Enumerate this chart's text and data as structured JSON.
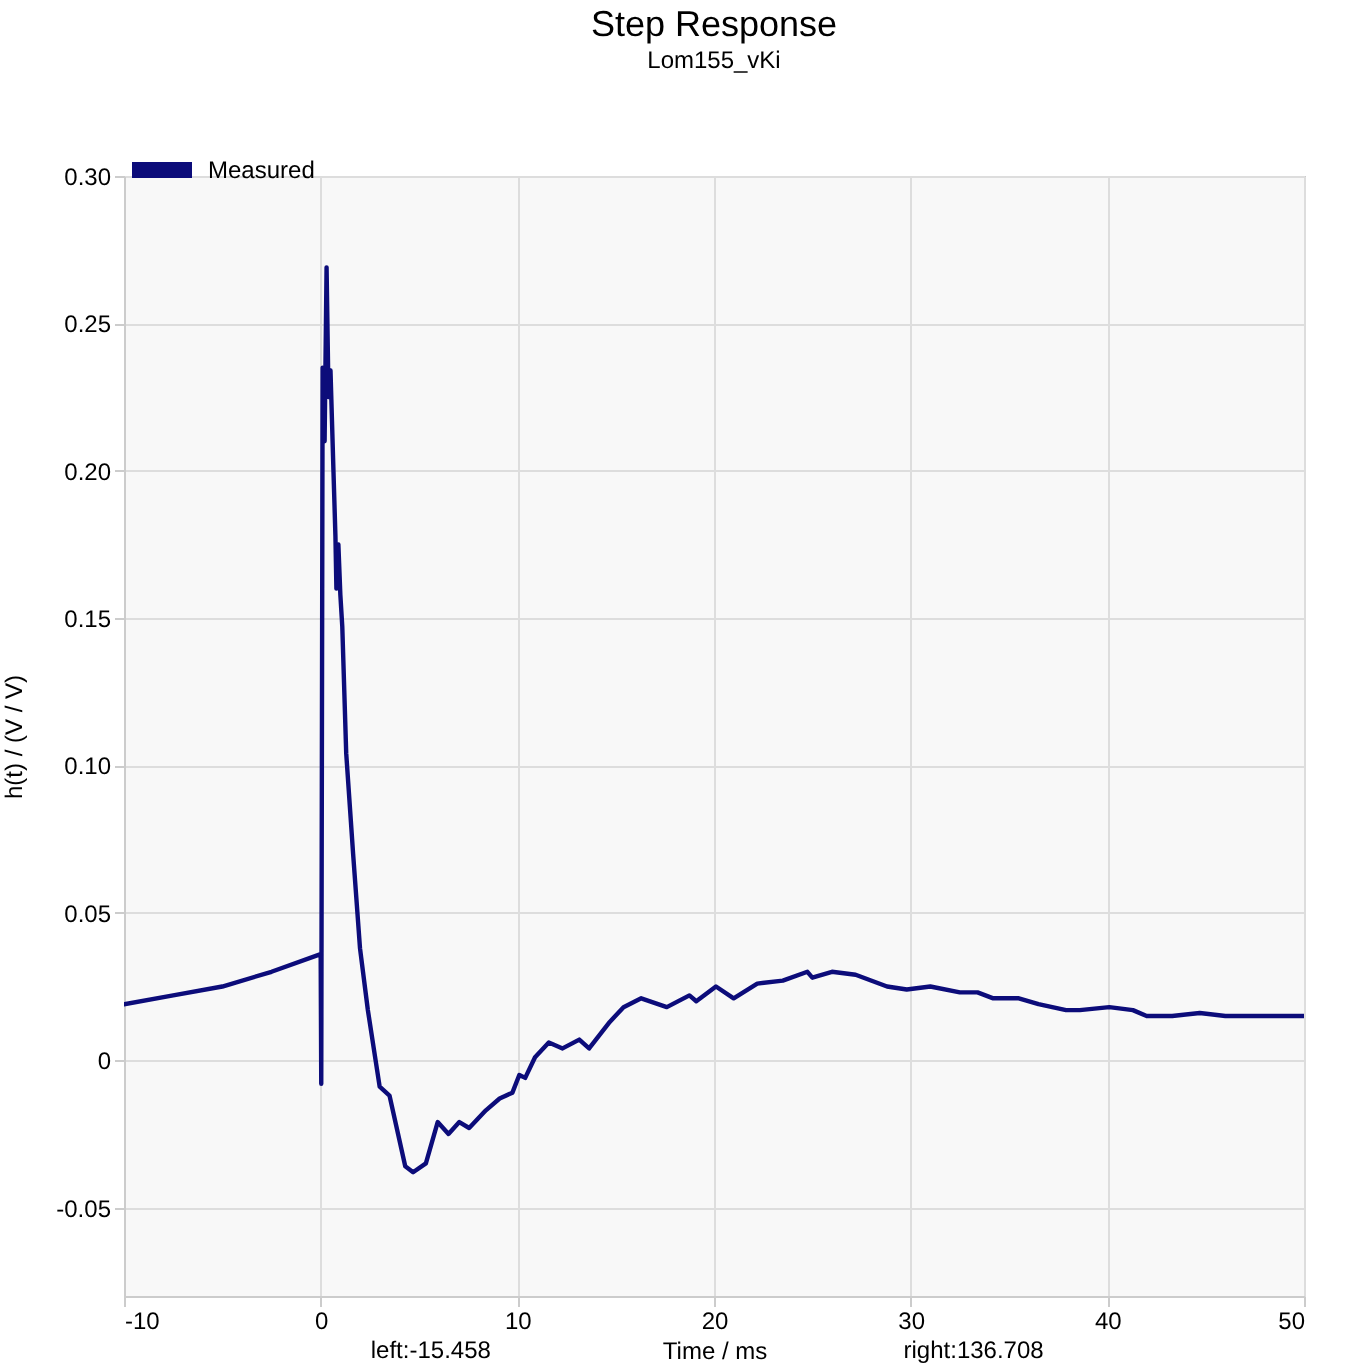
{
  "chart_data": {
    "type": "line",
    "title": "Step Response",
    "subtitle": "Lom155_vKi",
    "xlabel": "Time / ms",
    "ylabel": "h(t) / (V / V)",
    "annotations": [
      "left:-15.458",
      "right:136.708"
    ],
    "xlim": [
      -10,
      50
    ],
    "xticks": [
      -10,
      0,
      10,
      20,
      30,
      40,
      50
    ],
    "ylim": [
      -0.08,
      0.3
    ],
    "yticks": [
      -0.05,
      0,
      0.05,
      {
        "value": 0.1,
        "label": "0.10"
      },
      0.15,
      {
        "value": 0.2,
        "label": "0.20"
      },
      0.25,
      {
        "value": 0.3,
        "label": "0.30"
      }
    ],
    "grid": true,
    "legend": "top left",
    "line_style": "solid",
    "series": [
      {
        "name": "Measured",
        "color": "#0c0c7a",
        "x": [
          -10,
          -7.5,
          -5,
          -2.5,
          0,
          0.03,
          0.1,
          0.2,
          0.3,
          0.4,
          0.5,
          0.65,
          0.75,
          0.8,
          0.9,
          1.0,
          1.1,
          1.3,
          1.65,
          2.0,
          2.4,
          3.0,
          3.5,
          4.3,
          4.7,
          5.35,
          5.95,
          6.5,
          7.05,
          7.55,
          8.4,
          9.1,
          9.75,
          10.1,
          10.4,
          10.9,
          11.6,
          12.3,
          13.15,
          13.65,
          14.7,
          15.4,
          16.3,
          17.6,
          18.75,
          19.1,
          20.1,
          21.0,
          22.2,
          23.5,
          24.75,
          25.0,
          26.0,
          27.2,
          28.8,
          29.8,
          31.0,
          32.5,
          33.4,
          34.2,
          35.5,
          36.5,
          37.9,
          38.6,
          40.1,
          41.3,
          42.0,
          43.3,
          44.7,
          46.0,
          50
        ],
        "values": [
          0.019,
          0.022,
          0.025,
          0.03,
          0.036,
          -0.008,
          0.235,
          0.21,
          0.269,
          0.225,
          0.234,
          0.2,
          0.178,
          0.16,
          0.175,
          0.158,
          0.147,
          0.104,
          0.07,
          0.038,
          0.017,
          -0.009,
          -0.012,
          -0.036,
          -0.038,
          -0.035,
          -0.021,
          -0.025,
          -0.021,
          -0.023,
          -0.017,
          -0.013,
          -0.011,
          -0.005,
          -0.006,
          0.001,
          0.006,
          0.004,
          0.007,
          0.004,
          0.013,
          0.018,
          0.021,
          0.018,
          0.022,
          0.02,
          0.025,
          0.021,
          0.026,
          0.027,
          0.03,
          0.028,
          0.03,
          0.029,
          0.025,
          0.024,
          0.025,
          0.023,
          0.023,
          0.021,
          0.021,
          0.019,
          0.017,
          0.017,
          0.018,
          0.017,
          0.015,
          0.015,
          0.016,
          0.015,
          0.015
        ]
      }
    ]
  }
}
